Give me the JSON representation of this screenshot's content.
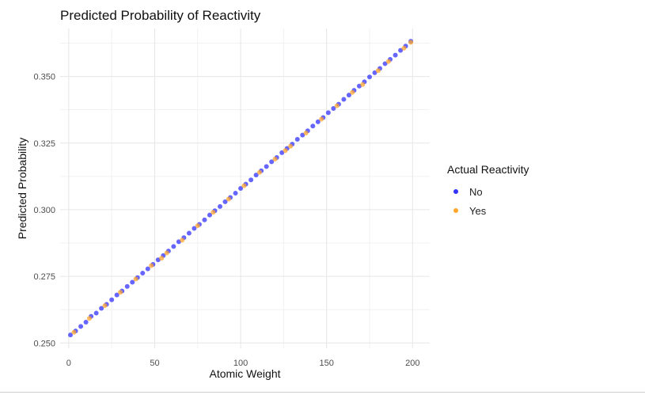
{
  "chart_data": {
    "type": "scatter",
    "title": "Predicted Probability of Reactivity",
    "xlabel": "Atomic Weight",
    "ylabel": "Predicted Probability",
    "xlim": [
      -5,
      210
    ],
    "ylim": [
      0.248,
      0.368
    ],
    "x_ticks": [
      0,
      50,
      100,
      150,
      200
    ],
    "x_tick_labels": [
      "0",
      "50",
      "100",
      "150",
      "200"
    ],
    "y_ticks": [
      0.25,
      0.275,
      0.3,
      0.325,
      0.35
    ],
    "y_tick_labels": [
      "0.250",
      "0.275",
      "0.300",
      "0.325",
      "0.350"
    ],
    "grid": true,
    "legend": {
      "title": "Actual Reactivity",
      "position": "right",
      "entries": [
        {
          "label": "No",
          "color": "#3333ff"
        },
        {
          "label": "Yes",
          "color": "#ffa62b"
        }
      ]
    },
    "trend": {
      "intercept": 0.2525,
      "slope": 0.000555,
      "note": "points follow approx. y = 0.2525 + 0.000555*x with small noise"
    },
    "series": [
      {
        "name": "No",
        "color": "#3333ff",
        "x": [
          1,
          4,
          7,
          10,
          13,
          16,
          19,
          22,
          25,
          28,
          31,
          34,
          37,
          40,
          43,
          46,
          49,
          52,
          55,
          58,
          61,
          64,
          67,
          70,
          73,
          76,
          79,
          82,
          85,
          88,
          91,
          94,
          97,
          100,
          103,
          106,
          109,
          112,
          115,
          118,
          121,
          124,
          127,
          130,
          133,
          136,
          139,
          142,
          145,
          148,
          151,
          154,
          157,
          160,
          163,
          166,
          169,
          172,
          175,
          178,
          181,
          184,
          187,
          190,
          193,
          196,
          199
        ],
        "y": [
          0.253,
          0.2545,
          0.2562,
          0.2578,
          0.26,
          0.2612,
          0.263,
          0.2645,
          0.2662,
          0.268,
          0.2695,
          0.2712,
          0.2728,
          0.2745,
          0.2762,
          0.2778,
          0.2795,
          0.2812,
          0.2828,
          0.2845,
          0.2862,
          0.288,
          0.2895,
          0.2912,
          0.293,
          0.2945,
          0.2962,
          0.298,
          0.2996,
          0.3012,
          0.303,
          0.3046,
          0.3062,
          0.308,
          0.3096,
          0.3112,
          0.313,
          0.3146,
          0.3162,
          0.318,
          0.3196,
          0.3214,
          0.323,
          0.3246,
          0.3264,
          0.328,
          0.3296,
          0.3314,
          0.333,
          0.3346,
          0.3364,
          0.338,
          0.3396,
          0.3414,
          0.343,
          0.3448,
          0.3464,
          0.348,
          0.3498,
          0.3514,
          0.353,
          0.3548,
          0.3564,
          0.358,
          0.3598,
          0.3614,
          0.3632
        ]
      },
      {
        "name": "Yes",
        "color": "#ffa62b",
        "x": [
          3,
          12,
          21,
          30,
          39,
          48,
          54,
          57,
          66,
          75,
          84,
          93,
          102,
          111,
          120,
          126,
          129,
          138,
          147,
          156,
          165,
          171,
          180,
          186,
          195,
          199
        ],
        "y": [
          0.254,
          0.2592,
          0.264,
          0.269,
          0.274,
          0.279,
          0.2818,
          0.2838,
          0.2886,
          0.294,
          0.299,
          0.304,
          0.309,
          0.314,
          0.319,
          0.3222,
          0.3238,
          0.3288,
          0.334,
          0.339,
          0.344,
          0.347,
          0.3522,
          0.3556,
          0.3606,
          0.3628
        ]
      }
    ]
  }
}
